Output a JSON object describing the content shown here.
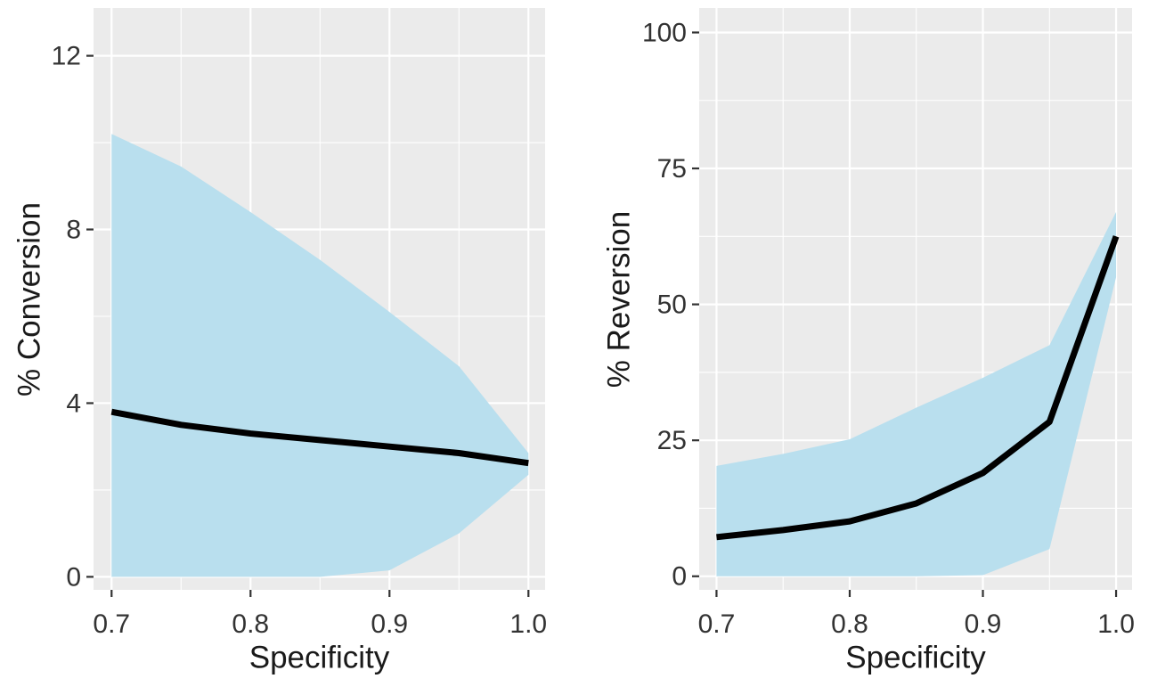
{
  "figure": {
    "background": "#ffffff",
    "title": ""
  },
  "colors": {
    "panel_background": "#ebebeb",
    "gridline_major": "#ffffff",
    "gridline_minor": "#ffffff",
    "ribbon_fill": "#b9dfee",
    "line_color": "#000000",
    "tick_mark_color": "#333333",
    "tick_label_color": "#333333",
    "axis_title_color": "#1a1a1a"
  },
  "chart_data": [
    {
      "type": "area",
      "title": "",
      "xlabel": "Specificity",
      "ylabel": "% Conversion",
      "legend_position": "none",
      "grid": true,
      "x": [
        0.7,
        0.75,
        0.8,
        0.85,
        0.9,
        0.95,
        1.0
      ],
      "series": [
        {
          "name": "estimate",
          "values": [
            3.8,
            3.5,
            3.3,
            3.15,
            3.0,
            2.85,
            2.62
          ]
        },
        {
          "name": "upper",
          "values": [
            10.2,
            9.45,
            8.4,
            7.3,
            6.1,
            4.85,
            2.85
          ]
        },
        {
          "name": "lower",
          "values": [
            0.0,
            0.0,
            0.0,
            0.0,
            0.15,
            1.0,
            2.35
          ]
        }
      ],
      "xticks": {
        "values": [
          0.7,
          0.8,
          0.9,
          1.0
        ],
        "labels": [
          "0.7",
          "0.8",
          "0.9",
          "1.0"
        ]
      },
      "yticks": {
        "values": [
          0,
          4,
          8,
          12
        ],
        "labels": [
          "0",
          "4",
          "8",
          "12"
        ]
      },
      "xlim": [
        0.687,
        1.012
      ],
      "ylim": [
        -0.3,
        13.1
      ]
    },
    {
      "type": "area",
      "title": "",
      "xlabel": "Specificity",
      "ylabel": "% Reversion",
      "legend_position": "none",
      "grid": true,
      "x": [
        0.7,
        0.75,
        0.8,
        0.85,
        0.9,
        0.95,
        1.0
      ],
      "series": [
        {
          "name": "estimate",
          "values": [
            7.2,
            8.5,
            10.1,
            13.4,
            19.0,
            28.4,
            62.5
          ]
        },
        {
          "name": "upper",
          "values": [
            20.3,
            22.5,
            25.2,
            31.0,
            36.5,
            42.5,
            67.0
          ]
        },
        {
          "name": "lower",
          "values": [
            0.0,
            0.0,
            0.0,
            0.0,
            0.2,
            5.0,
            55.0
          ]
        }
      ],
      "xticks": {
        "values": [
          0.7,
          0.8,
          0.9,
          1.0
        ],
        "labels": [
          "0.7",
          "0.8",
          "0.9",
          "1.0"
        ]
      },
      "yticks": {
        "values": [
          0,
          25,
          50,
          75,
          100
        ],
        "labels": [
          "0",
          "25",
          "50",
          "75",
          "100"
        ]
      },
      "xlim": [
        0.687,
        1.012
      ],
      "ylim": [
        -2.5,
        104.5
      ]
    }
  ]
}
